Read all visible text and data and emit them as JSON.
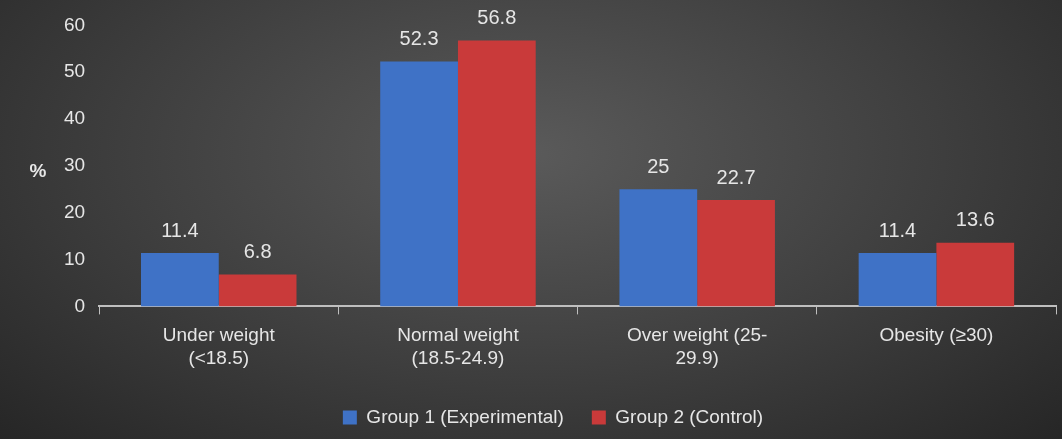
{
  "chart_data": {
    "type": "bar",
    "ylabel": "%",
    "categories": [
      "Under weight (<18.5)",
      "Normal weight (18.5-24.9)",
      "Over weight (25-29.9)",
      "Obesity (≥30)"
    ],
    "series": [
      {
        "name": "Group 1 (Experimental)",
        "color": "#3f72c6",
        "values": [
          11.4,
          52.3,
          25,
          11.4
        ]
      },
      {
        "name": "Group 2 (Control)",
        "color": "#c93a3a",
        "values": [
          6.8,
          56.8,
          22.7,
          13.6
        ]
      }
    ],
    "ylim": [
      0,
      60
    ],
    "yticks": [
      0,
      10,
      20,
      30,
      40,
      50,
      60
    ],
    "grid": false,
    "legend": "bottom",
    "data_labels": true
  }
}
